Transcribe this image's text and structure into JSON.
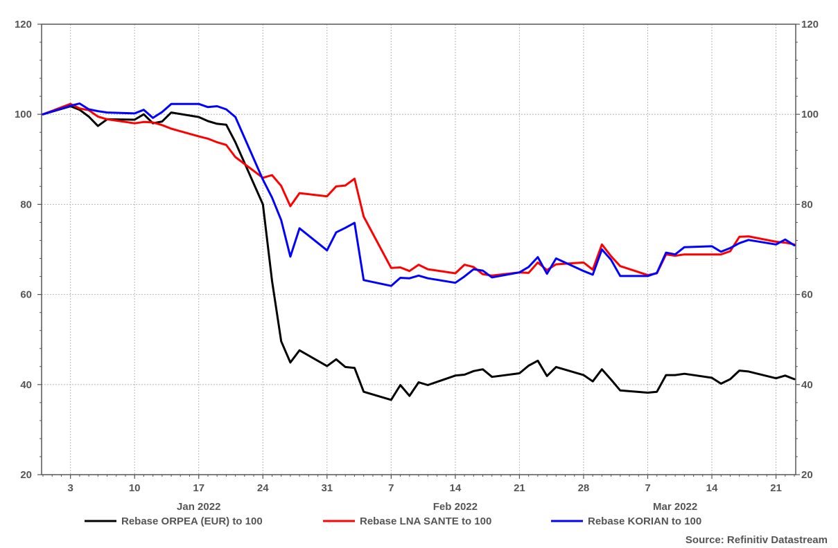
{
  "chart_data": {
    "type": "line",
    "title": "",
    "xlabel": "",
    "ylabel": "",
    "ylim": [
      20,
      120
    ],
    "y_ticks": [
      20,
      40,
      60,
      80,
      100,
      120
    ],
    "y_ticks_right": [
      20,
      40,
      60,
      80,
      100,
      120
    ],
    "grid": true,
    "legend_position": "bottom",
    "x_tick_labels": [
      {
        "label": "3",
        "date": "2022-01-03"
      },
      {
        "label": "10",
        "date": "2022-01-10"
      },
      {
        "label": "17",
        "date": "2022-01-17"
      },
      {
        "label": "24",
        "date": "2022-01-24"
      },
      {
        "label": "31",
        "date": "2022-01-31"
      },
      {
        "label": "7",
        "date": "2022-02-07"
      },
      {
        "label": "14",
        "date": "2022-02-14"
      },
      {
        "label": "21",
        "date": "2022-02-21"
      },
      {
        "label": "28",
        "date": "2022-02-28"
      },
      {
        "label": "7",
        "date": "2022-03-07"
      },
      {
        "label": "14",
        "date": "2022-03-14"
      },
      {
        "label": "21",
        "date": "2022-03-21"
      }
    ],
    "month_labels": [
      {
        "label": "Jan 2022",
        "date": "2022-01-17"
      },
      {
        "label": "Feb 2022",
        "date": "2022-02-14"
      },
      {
        "label": "Mar 2022",
        "date": "2022-03-10"
      }
    ],
    "x": [
      "2021-12-31",
      "2022-01-03",
      "2022-01-04",
      "2022-01-05",
      "2022-01-06",
      "2022-01-07",
      "2022-01-10",
      "2022-01-11",
      "2022-01-12",
      "2022-01-13",
      "2022-01-14",
      "2022-01-17",
      "2022-01-18",
      "2022-01-19",
      "2022-01-20",
      "2022-01-21",
      "2022-01-24",
      "2022-01-25",
      "2022-01-26",
      "2022-01-27",
      "2022-01-28",
      "2022-01-31",
      "2022-02-01",
      "2022-02-02",
      "2022-02-03",
      "2022-02-04",
      "2022-02-07",
      "2022-02-08",
      "2022-02-09",
      "2022-02-10",
      "2022-02-11",
      "2022-02-14",
      "2022-02-15",
      "2022-02-16",
      "2022-02-17",
      "2022-02-18",
      "2022-02-21",
      "2022-02-22",
      "2022-02-23",
      "2022-02-24",
      "2022-02-25",
      "2022-02-28",
      "2022-03-01",
      "2022-03-02",
      "2022-03-03",
      "2022-03-04",
      "2022-03-07",
      "2022-03-08",
      "2022-03-09",
      "2022-03-10",
      "2022-03-11",
      "2022-03-14",
      "2022-03-15",
      "2022-03-16",
      "2022-03-17",
      "2022-03-18",
      "2022-03-21",
      "2022-03-22",
      "2022-03-23"
    ],
    "series": [
      {
        "name": "Rebase ORPEA (EUR) to 100",
        "color": "#000000",
        "values": [
          100,
          101.8,
          101,
          99.5,
          97.4,
          98.9,
          98.8,
          100,
          98,
          98.4,
          100.4,
          99.4,
          98.5,
          97.9,
          97.7,
          93.8,
          80,
          63,
          49.6,
          44.9,
          47.6,
          44.1,
          45.6,
          43.9,
          43.7,
          38.4,
          36.6,
          39.9,
          37.5,
          40.5,
          39.9,
          42,
          42.2,
          43,
          43.4,
          41.7,
          42.5,
          44.2,
          45.3,
          41.9,
          43.9,
          42.1,
          40.7,
          43.4,
          41.1,
          38.7,
          38.2,
          38.4,
          42.1,
          42.1,
          42.4,
          41.5,
          40.2,
          41.2,
          43.1,
          42.9,
          41.4,
          42,
          41.2
        ]
      },
      {
        "name": "Rebase LNA SANTE to 100",
        "color": "#ff0000",
        "values": [
          100,
          102.3,
          101.3,
          100.9,
          99.5,
          98.9,
          98,
          98.3,
          98.2,
          97.6,
          96.8,
          95.1,
          94.6,
          93.8,
          93.2,
          90.5,
          85.9,
          86.5,
          84.1,
          79.6,
          82.5,
          81.8,
          84,
          84.2,
          85.7,
          77.3,
          65.9,
          66,
          65.2,
          66.6,
          65.6,
          64.7,
          66.6,
          66.1,
          64.5,
          64.2,
          64.9,
          64.8,
          67.1,
          65.4,
          66.7,
          67.1,
          65.5,
          71.1,
          68.5,
          66.3,
          64.3,
          64.7,
          68.9,
          68.6,
          68.9,
          68.9,
          68.9,
          69.6,
          72.8,
          72.9,
          71.7,
          71.5,
          71.1
        ]
      },
      {
        "name": "Rebase KORIAN to 100",
        "color": "#0000ff",
        "values": [
          100,
          101.9,
          102.4,
          101.1,
          100.7,
          100.4,
          100.2,
          101,
          99.2,
          100.5,
          102.3,
          102.3,
          101.6,
          101.8,
          101.1,
          99.4,
          85.5,
          81.5,
          76.5,
          68.4,
          74.7,
          69.8,
          73.8,
          74.8,
          75.9,
          63.2,
          61.9,
          63.7,
          63.6,
          64.2,
          63.6,
          62.6,
          64,
          65.6,
          65.3,
          63.8,
          64.9,
          66.1,
          68.3,
          64.6,
          68,
          65.2,
          64.4,
          70,
          67.7,
          64.1,
          64.1,
          64.8,
          69.3,
          68.9,
          70.5,
          70.7,
          69.5,
          70.3,
          71.4,
          72.1,
          71.1,
          72.2,
          70.9
        ]
      }
    ]
  },
  "source": "Source: Refinitiv Datastream"
}
